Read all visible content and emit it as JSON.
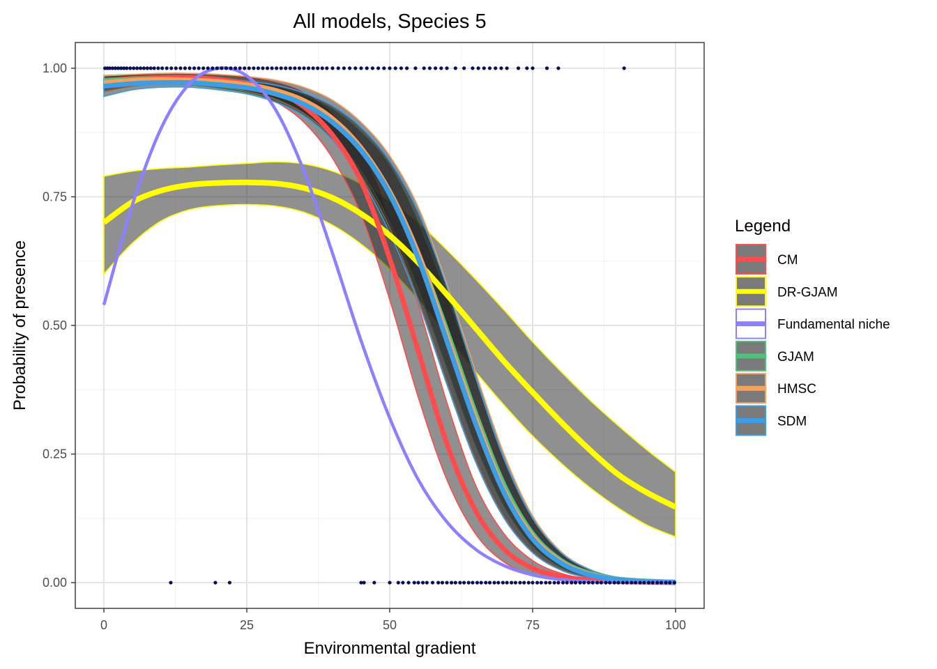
{
  "chart_data": {
    "type": "line",
    "title": "All models, Species 5",
    "xlabel": "Environmental gradient",
    "ylabel": "Probability of presence",
    "xlim": [
      -5,
      105
    ],
    "ylim": [
      -0.05,
      1.05
    ],
    "x_ticks": [
      0,
      25,
      50,
      75,
      100
    ],
    "x_tick_labels": [
      "0",
      "25",
      "50",
      "75",
      "100"
    ],
    "y_ticks": [
      0,
      0.25,
      0.5,
      0.75,
      1
    ],
    "y_tick_labels": [
      "0.00",
      "0.25",
      "0.50",
      "0.75",
      "1.00"
    ],
    "grid": true,
    "legend_title": "Legend",
    "legend_position": "right",
    "x": [
      0,
      5,
      10,
      15,
      20,
      25,
      30,
      35,
      40,
      45,
      50,
      55,
      60,
      65,
      70,
      75,
      80,
      85,
      90,
      95,
      100
    ],
    "series": [
      {
        "name": "CM",
        "color": "#FF4B4B",
        "mean": [
          0.975,
          0.98,
          0.982,
          0.982,
          0.978,
          0.97,
          0.955,
          0.925,
          0.87,
          0.78,
          0.63,
          0.45,
          0.27,
          0.14,
          0.065,
          0.028,
          0.012,
          0.005,
          0.002,
          0.001,
          0.0
        ],
        "lower": [
          0.96,
          0.97,
          0.973,
          0.972,
          0.966,
          0.955,
          0.935,
          0.895,
          0.825,
          0.715,
          0.55,
          0.36,
          0.2,
          0.095,
          0.04,
          0.016,
          0.006,
          0.002,
          0.001,
          0.0,
          0.0
        ],
        "upper": [
          0.985,
          0.988,
          0.99,
          0.99,
          0.988,
          0.982,
          0.972,
          0.952,
          0.91,
          0.84,
          0.71,
          0.54,
          0.35,
          0.19,
          0.095,
          0.043,
          0.018,
          0.007,
          0.003,
          0.001,
          0.0
        ]
      },
      {
        "name": "DR-GJAM",
        "color": "#FFFF00",
        "mean": [
          0.7,
          0.74,
          0.762,
          0.773,
          0.777,
          0.778,
          0.776,
          0.767,
          0.748,
          0.717,
          0.675,
          0.622,
          0.56,
          0.495,
          0.43,
          0.37,
          0.312,
          0.258,
          0.21,
          0.175,
          0.147
        ],
        "lower": [
          0.6,
          0.66,
          0.703,
          0.725,
          0.733,
          0.735,
          0.732,
          0.72,
          0.695,
          0.658,
          0.61,
          0.55,
          0.48,
          0.41,
          0.345,
          0.285,
          0.232,
          0.185,
          0.145,
          0.112,
          0.089
        ],
        "upper": [
          0.79,
          0.8,
          0.805,
          0.808,
          0.812,
          0.815,
          0.818,
          0.814,
          0.8,
          0.775,
          0.742,
          0.7,
          0.647,
          0.59,
          0.53,
          0.468,
          0.41,
          0.355,
          0.305,
          0.258,
          0.215
        ]
      },
      {
        "name": "Fundamental niche",
        "color": "#8B80FF",
        "mean": [
          0.54,
          0.735,
          0.883,
          0.97,
          1.0,
          0.985,
          0.92,
          0.8,
          0.64,
          0.47,
          0.32,
          0.2,
          0.118,
          0.065,
          0.033,
          0.015,
          0.006,
          0.002,
          0.001,
          0.0,
          0.0
        ]
      },
      {
        "name": "GJAM",
        "color": "#4EC27D",
        "mean": [
          0.975,
          0.978,
          0.978,
          0.975,
          0.97,
          0.963,
          0.95,
          0.93,
          0.895,
          0.84,
          0.76,
          0.64,
          0.49,
          0.33,
          0.19,
          0.095,
          0.043,
          0.018,
          0.007,
          0.003,
          0.001
        ],
        "lower": [
          0.96,
          0.968,
          0.97,
          0.968,
          0.962,
          0.953,
          0.938,
          0.912,
          0.868,
          0.8,
          0.7,
          0.57,
          0.42,
          0.27,
          0.15,
          0.072,
          0.031,
          0.012,
          0.004,
          0.001,
          0.0
        ],
        "upper": [
          0.986,
          0.988,
          0.988,
          0.985,
          0.982,
          0.976,
          0.965,
          0.948,
          0.92,
          0.875,
          0.81,
          0.7,
          0.56,
          0.4,
          0.24,
          0.125,
          0.058,
          0.025,
          0.01,
          0.004,
          0.002
        ]
      },
      {
        "name": "HMSC",
        "color": "#F5A25C",
        "mean": [
          0.972,
          0.976,
          0.978,
          0.977,
          0.974,
          0.968,
          0.957,
          0.937,
          0.902,
          0.845,
          0.76,
          0.64,
          0.48,
          0.32,
          0.18,
          0.09,
          0.04,
          0.016,
          0.006,
          0.002,
          0.001
        ],
        "lower": [
          0.955,
          0.965,
          0.969,
          0.968,
          0.964,
          0.955,
          0.94,
          0.912,
          0.865,
          0.79,
          0.69,
          0.55,
          0.39,
          0.24,
          0.128,
          0.06,
          0.025,
          0.009,
          0.003,
          0.001,
          0.0
        ],
        "upper": [
          0.985,
          0.988,
          0.99,
          0.99,
          0.988,
          0.984,
          0.977,
          0.963,
          0.938,
          0.895,
          0.83,
          0.73,
          0.58,
          0.41,
          0.25,
          0.13,
          0.06,
          0.026,
          0.01,
          0.004,
          0.002
        ]
      },
      {
        "name": "SDM",
        "color": "#3D9EE6",
        "mean": [
          0.965,
          0.97,
          0.972,
          0.972,
          0.968,
          0.962,
          0.95,
          0.93,
          0.895,
          0.84,
          0.755,
          0.63,
          0.47,
          0.31,
          0.175,
          0.085,
          0.038,
          0.015,
          0.006,
          0.002,
          0.001
        ],
        "lower": [
          0.945,
          0.958,
          0.963,
          0.963,
          0.958,
          0.95,
          0.934,
          0.907,
          0.86,
          0.785,
          0.68,
          0.545,
          0.385,
          0.235,
          0.125,
          0.058,
          0.024,
          0.009,
          0.003,
          0.001,
          0.0
        ],
        "upper": [
          0.98,
          0.983,
          0.984,
          0.983,
          0.98,
          0.975,
          0.967,
          0.952,
          0.927,
          0.885,
          0.82,
          0.72,
          0.575,
          0.4,
          0.24,
          0.125,
          0.058,
          0.025,
          0.01,
          0.004,
          0.002
        ]
      }
    ],
    "observations": {
      "color": "#0B1053",
      "presence_y": 1,
      "absence_y": 0,
      "presence_x": [
        0.2,
        0.6,
        1.0,
        1.5,
        2.0,
        2.5,
        3.0,
        3.5,
        4.0,
        4.6,
        5.2,
        5.8,
        6.4,
        7.0,
        7.6,
        8.2,
        8.8,
        9.5,
        10.2,
        11.0,
        11.8,
        12.6,
        13.4,
        14.2,
        15.0,
        15.8,
        16.6,
        17.4,
        18.2,
        19.0,
        19.8,
        20.6,
        21.4,
        22.2,
        23.0,
        23.8,
        24.6,
        25.4,
        26.2,
        27.0,
        27.8,
        28.6,
        29.4,
        30.2,
        31.0,
        31.8,
        32.6,
        33.4,
        34.2,
        35.0,
        35.8,
        36.6,
        37.4,
        38.2,
        39.0,
        40.0,
        41.0,
        42.0,
        43.0,
        44.0,
        45.0,
        46.0,
        47.0,
        48.0,
        49.0,
        50.0,
        51.0,
        52.0,
        53.0,
        54.5,
        56.0,
        57.0,
        58.0,
        59.0,
        60.0,
        61.5,
        63.0,
        64.5,
        65.5,
        66.5,
        67.5,
        68.5,
        69.5,
        70.5,
        72.5,
        74.0,
        75.0,
        77.5,
        79.5,
        91.0
      ],
      "absence_x": [
        11.7,
        19.5,
        22.0,
        45.0,
        45.5,
        47.3,
        50.0,
        51.5,
        52.3,
        53.3,
        54.3,
        55.0,
        55.8,
        56.5,
        57.5,
        58.5,
        59.2,
        60.0,
        60.8,
        61.5,
        62.3,
        63.0,
        63.8,
        64.5,
        65.3,
        66.0,
        66.8,
        67.5,
        68.3,
        69.0,
        69.8,
        70.5,
        71.3,
        72.0,
        72.8,
        73.5,
        74.3,
        75.0,
        75.8,
        76.5,
        77.3,
        78.0,
        78.8,
        79.5,
        80.3,
        81.0,
        81.8,
        82.5,
        83.3,
        84.0,
        84.8,
        85.5,
        86.3,
        87.0,
        87.8,
        88.5,
        89.3,
        90.0,
        90.8,
        91.5,
        92.3,
        93.0,
        93.8,
        94.5,
        95.3,
        96.0,
        96.8,
        97.5,
        98.3,
        99.0,
        99.8
      ]
    }
  }
}
